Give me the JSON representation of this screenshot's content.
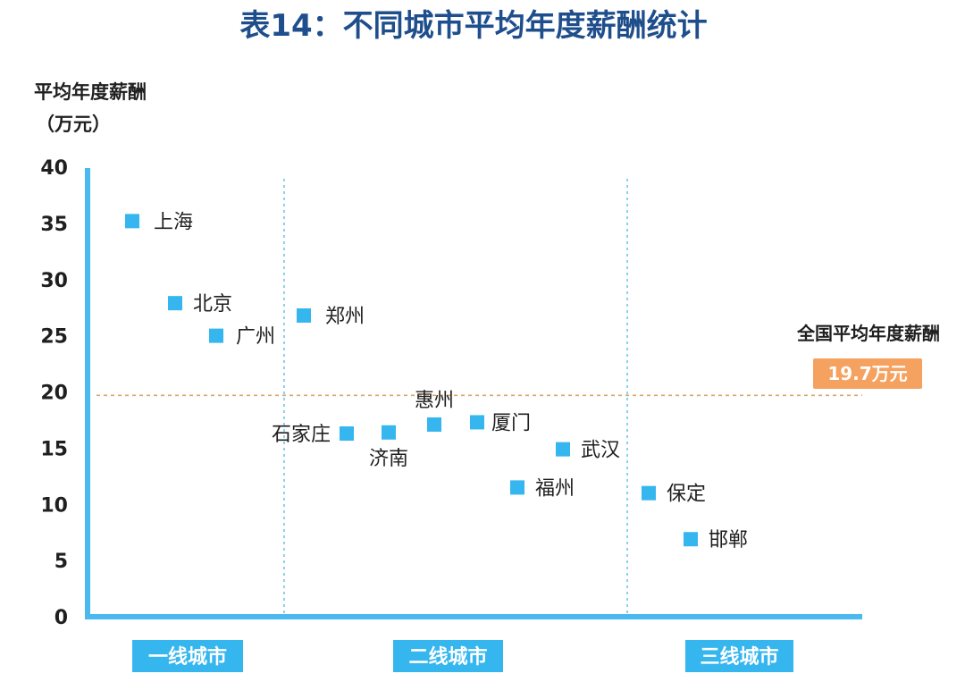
{
  "chart_data": {
    "type": "scatter",
    "title": "表14：不同城市平均年度薪酬统计",
    "ylabel_line1": "平均年度薪酬",
    "ylabel_line2": "（万元）",
    "ylim": [
      0,
      40
    ],
    "yticks": [
      0,
      5,
      10,
      15,
      20,
      25,
      30,
      35,
      40
    ],
    "grid": false,
    "tiers": [
      "一线城市",
      "二线城市",
      "三线城市"
    ],
    "points": [
      {
        "label": "上海",
        "tier": 0,
        "y": 35.2
      },
      {
        "label": "北京",
        "tier": 0,
        "y": 27.9
      },
      {
        "label": "广州",
        "tier": 0,
        "y": 25.0
      },
      {
        "label": "郑州",
        "tier": 1,
        "y": 26.8
      },
      {
        "label": "石家庄",
        "tier": 1,
        "y": 16.3
      },
      {
        "label": "济南",
        "tier": 1,
        "y": 16.4
      },
      {
        "label": "惠州",
        "tier": 1,
        "y": 17.1
      },
      {
        "label": "厦门",
        "tier": 1,
        "y": 17.3
      },
      {
        "label": "武汉",
        "tier": 1,
        "y": 14.9
      },
      {
        "label": "福州",
        "tier": 1,
        "y": 11.5
      },
      {
        "label": "保定",
        "tier": 2,
        "y": 11.0
      },
      {
        "label": "邯郸",
        "tier": 2,
        "y": 6.9
      }
    ],
    "reference_line": {
      "value": 19.7,
      "label": "全国平均年度薪酬",
      "badge": "19.7万元"
    }
  },
  "colors": {
    "title": "#1f4e8c",
    "axis": "#4ab9f0",
    "marker": "#35b6ee",
    "tier_fill": "#35b6ee",
    "divider": "#6ec6ea",
    "reference": "#d9a56a",
    "badge": "#f5a15f"
  }
}
